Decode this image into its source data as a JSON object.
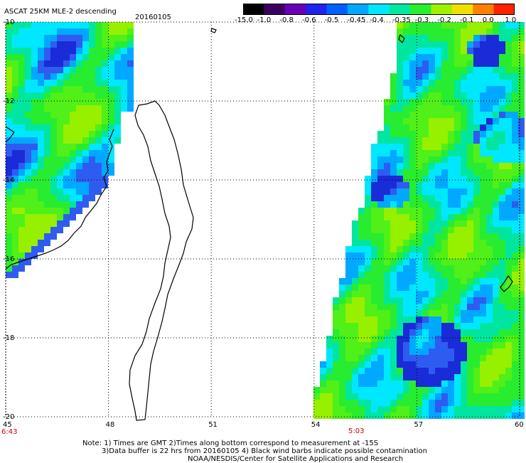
{
  "header": {
    "title": "ASCAT 25KM MLE-2 descending",
    "date": "20160105"
  },
  "colorbar": {
    "labels": [
      "-15.0",
      "-1.0",
      "-0.8",
      "-0.6",
      "-0.5",
      "-0.45",
      "-0.4",
      "-0.35",
      "-0.3",
      "-0.2",
      "-0.1",
      "0.0",
      "1.0"
    ],
    "colors": [
      "#000000",
      "#3a0060",
      "#6a00b8",
      "#2222ee",
      "#0060ff",
      "#00a8ff",
      "#00e8ff",
      "#00e8a0",
      "#28ee30",
      "#a0f000",
      "#f0e000",
      "#ff8000",
      "#ff2000"
    ]
  },
  "axes": {
    "lat_ticks": [
      "-10",
      "-12",
      "-14",
      "-16",
      "-18",
      "-20"
    ],
    "lon_ticks": [
      "45",
      "48",
      "51",
      "54",
      "57",
      "60"
    ],
    "lon_range": [
      45,
      60
    ],
    "lat_range": [
      -10,
      -20
    ]
  },
  "times": {
    "left": "6:43",
    "right": "5:03"
  },
  "footer": {
    "line1": "Note: 1) Times are GMT 2)Times along bottom correspond to measurement at -15S",
    "line2": "3)Data buffer is 22 hrs from 20160105 4) Black wind barbs indicate possible contamination",
    "line3": "NOAA/NESDIS/Center for Satellite Applications and Research"
  }
}
